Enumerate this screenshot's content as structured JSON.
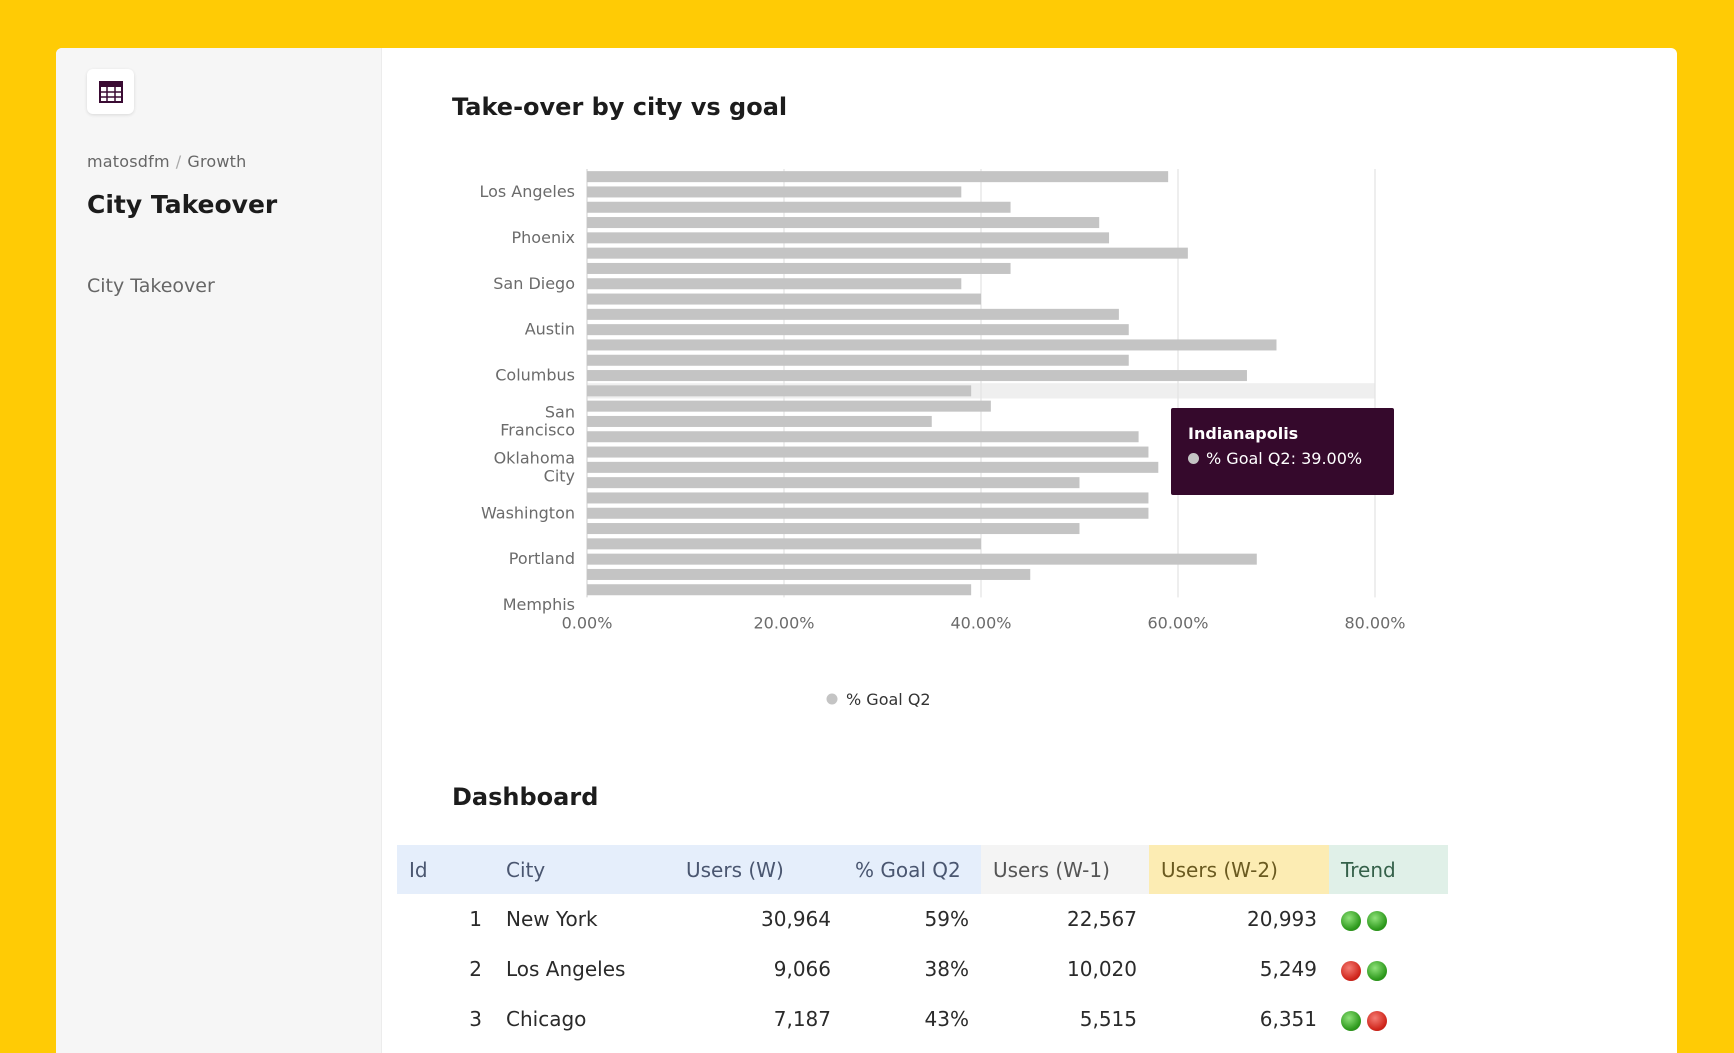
{
  "sidebar": {
    "breadcrumb": {
      "org": "matosdfm",
      "separator": "/",
      "project": "Growth"
    },
    "title": "City Takeover",
    "nav_items": [
      {
        "label": "City Takeover"
      }
    ]
  },
  "main": {
    "chart_section_title": "Take-over by city vs goal",
    "dashboard_title": "Dashboard"
  },
  "chart_data": {
    "type": "bar",
    "orientation": "horizontal",
    "title": "Take-over by city vs goal",
    "series": [
      {
        "name": "% Goal Q2",
        "color": "#c4c4c4",
        "values": [
          59,
          38,
          43,
          52,
          53,
          61,
          43,
          38,
          40,
          54,
          55,
          70,
          55,
          67,
          39,
          41,
          35,
          56,
          57,
          58,
          50,
          57,
          57,
          50,
          40,
          68,
          45,
          39
        ]
      }
    ],
    "y_tick_labels": [
      "Los Angeles",
      "Phoenix",
      "San Diego",
      "Austin",
      "Columbus",
      "San Francisco",
      "Oklahoma City",
      "Washington",
      "Portland",
      "Memphis"
    ],
    "x_tick_labels": [
      "0.00%",
      "20.00%",
      "40.00%",
      "60.00%",
      "80.00%"
    ],
    "xlim": [
      0,
      80
    ],
    "grid": true,
    "legend_position": "bottom",
    "highlighted_bar_index": 14,
    "tooltip": {
      "title": "Indianapolis",
      "series": "% Goal Q2",
      "value": "39.00%"
    }
  },
  "table": {
    "columns": [
      "Id",
      "City",
      "Users (W)",
      "% Goal Q2",
      "Users (W-1)",
      "Users (W-2)",
      "Trend"
    ],
    "rows": [
      {
        "id": "1",
        "city": "New York",
        "users_w": "30,964",
        "goal_q2": "59%",
        "users_w1": "22,567",
        "users_w2": "20,993",
        "trend": [
          "green",
          "green"
        ]
      },
      {
        "id": "2",
        "city": "Los Angeles",
        "users_w": "9,066",
        "goal_q2": "38%",
        "users_w1": "10,020",
        "users_w2": "5,249",
        "trend": [
          "red",
          "green"
        ]
      },
      {
        "id": "3",
        "city": "Chicago",
        "users_w": "7,187",
        "goal_q2": "43%",
        "users_w1": "5,515",
        "users_w2": "6,351",
        "trend": [
          "green",
          "red"
        ]
      }
    ]
  },
  "colors": {
    "frame": "#FFCB05",
    "tooltip_bg": "#35092c",
    "bar": "#c4c4c4"
  }
}
